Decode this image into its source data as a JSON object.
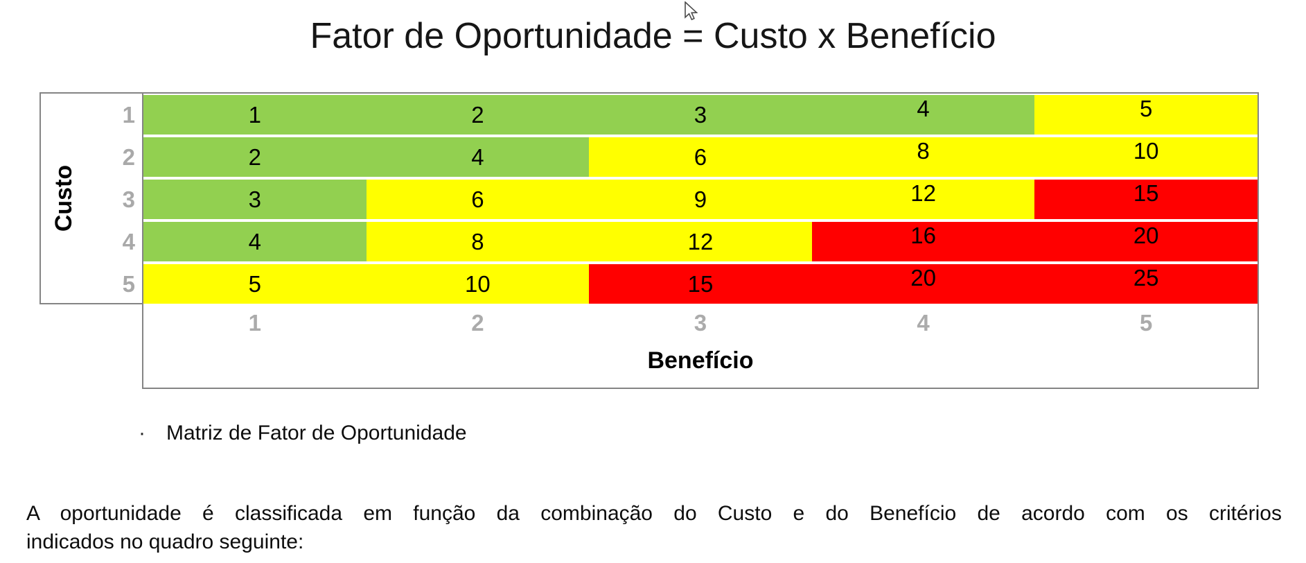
{
  "chart_data": {
    "type": "heatmap",
    "title": "Fator de Oportunidade = Custo x Benefício",
    "x_label": "Benefício",
    "y_label": "Custo",
    "x_ticks": [
      "1",
      "2",
      "3",
      "4",
      "5"
    ],
    "y_ticks": [
      "1",
      "2",
      "3",
      "4",
      "5"
    ],
    "palette": {
      "green": "#92D050",
      "yellow": "#FFFF00",
      "red": "#FF0000"
    },
    "tick_color": "#A6A6A6",
    "border_color": "#848484",
    "rows": [
      {
        "y": "1",
        "cells": [
          {
            "value": "1",
            "color": "green"
          },
          {
            "value": "2",
            "color": "green"
          },
          {
            "value": "3",
            "color": "green"
          },
          {
            "value": "4",
            "color": "green"
          },
          {
            "value": "5",
            "color": "yellow"
          }
        ]
      },
      {
        "y": "2",
        "cells": [
          {
            "value": "2",
            "color": "green"
          },
          {
            "value": "4",
            "color": "green"
          },
          {
            "value": "6",
            "color": "yellow"
          },
          {
            "value": "8",
            "color": "yellow"
          },
          {
            "value": "10",
            "color": "yellow"
          }
        ]
      },
      {
        "y": "3",
        "cells": [
          {
            "value": "3",
            "color": "green"
          },
          {
            "value": "6",
            "color": "yellow"
          },
          {
            "value": "9",
            "color": "yellow"
          },
          {
            "value": "12",
            "color": "yellow"
          },
          {
            "value": "15",
            "color": "red"
          }
        ]
      },
      {
        "y": "4",
        "cells": [
          {
            "value": "4",
            "color": "green"
          },
          {
            "value": "8",
            "color": "yellow"
          },
          {
            "value": "12",
            "color": "yellow"
          },
          {
            "value": "16",
            "color": "red"
          },
          {
            "value": "20",
            "color": "red"
          }
        ]
      },
      {
        "y": "5",
        "cells": [
          {
            "value": "5",
            "color": "yellow"
          },
          {
            "value": "10",
            "color": "yellow"
          },
          {
            "value": "15",
            "color": "red"
          },
          {
            "value": "20",
            "color": "red"
          },
          {
            "value": "25",
            "color": "red"
          }
        ]
      }
    ]
  },
  "caption": {
    "bullet": "·",
    "text": "Matriz de Fator de Oportunidade"
  },
  "paragraph": {
    "line1": "A oportunidade é classificada em função da combinação do Custo e do Benefício de acordo com os critérios",
    "line2": "indicados no quadro seguinte:"
  }
}
